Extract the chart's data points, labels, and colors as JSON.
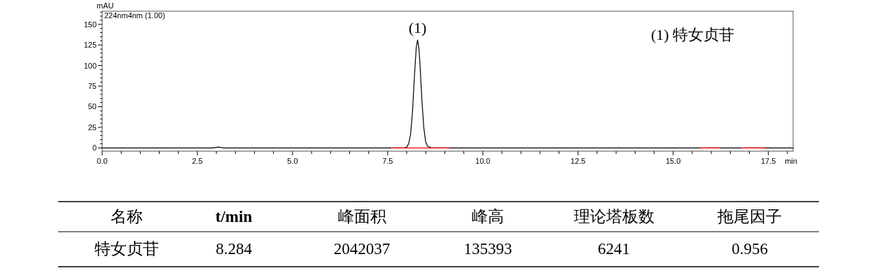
{
  "chart_data": {
    "type": "line",
    "xlabel": "min",
    "ylabel": "mAU",
    "xlim": [
      0,
      18.15
    ],
    "ylim": [
      -4,
      166
    ],
    "xticks": [
      {
        "value": 0,
        "label": "0.0"
      },
      {
        "value": 0.5,
        "label": null
      },
      {
        "value": 1,
        "label": null
      },
      {
        "value": 1.5,
        "label": null
      },
      {
        "value": 2,
        "label": null
      },
      {
        "value": 2.5,
        "label": "2.5"
      },
      {
        "value": 3,
        "label": null
      },
      {
        "value": 3.5,
        "label": null
      },
      {
        "value": 4,
        "label": null
      },
      {
        "value": 4.5,
        "label": null
      },
      {
        "value": 5,
        "label": "5.0"
      },
      {
        "value": 5.5,
        "label": null
      },
      {
        "value": 6,
        "label": null
      },
      {
        "value": 6.5,
        "label": null
      },
      {
        "value": 7,
        "label": null
      },
      {
        "value": 7.5,
        "label": "7.5"
      },
      {
        "value": 8,
        "label": null
      },
      {
        "value": 8.5,
        "label": null
      },
      {
        "value": 9,
        "label": null
      },
      {
        "value": 9.5,
        "label": null
      },
      {
        "value": 10,
        "label": "10.0"
      },
      {
        "value": 10.5,
        "label": null
      },
      {
        "value": 11,
        "label": null
      },
      {
        "value": 11.5,
        "label": null
      },
      {
        "value": 12,
        "label": null
      },
      {
        "value": 12.5,
        "label": "12.5"
      },
      {
        "value": 13,
        "label": null
      },
      {
        "value": 13.5,
        "label": null
      },
      {
        "value": 14,
        "label": null
      },
      {
        "value": 14.5,
        "label": null
      },
      {
        "value": 15,
        "label": "15.0"
      },
      {
        "value": 15.5,
        "label": null
      },
      {
        "value": 16,
        "label": null
      },
      {
        "value": 16.5,
        "label": null
      },
      {
        "value": 17,
        "label": null
      },
      {
        "value": 17.5,
        "label": "17.5"
      },
      {
        "value": 18,
        "label": null
      }
    ],
    "yticks": [
      0,
      {
        "value": 5,
        "label": null
      },
      {
        "value": 10,
        "label": null
      },
      {
        "value": 15,
        "label": null
      },
      {
        "value": 20,
        "label": null
      },
      25,
      {
        "value": 30,
        "label": null
      },
      {
        "value": 35,
        "label": null
      },
      {
        "value": 40,
        "label": null
      },
      {
        "value": 45,
        "label": null
      },
      50,
      {
        "value": 55,
        "label": null
      },
      {
        "value": 60,
        "label": null
      },
      {
        "value": 65,
        "label": null
      },
      {
        "value": 70,
        "label": null
      },
      75,
      {
        "value": 80,
        "label": null
      },
      {
        "value": 85,
        "label": null
      },
      {
        "value": 90,
        "label": null
      },
      {
        "value": 95,
        "label": null
      },
      100,
      {
        "value": 105,
        "label": null
      },
      {
        "value": 110,
        "label": null
      },
      {
        "value": 115,
        "label": null
      },
      {
        "value": 120,
        "label": null
      },
      125,
      {
        "value": 130,
        "label": null
      },
      {
        "value": 135,
        "label": null
      },
      {
        "value": 140,
        "label": null
      },
      {
        "value": 145,
        "label": null
      },
      150,
      {
        "value": 155,
        "label": null
      },
      {
        "value": 160,
        "label": null
      },
      {
        "value": 165,
        "label": null
      }
    ],
    "series": [
      {
        "color": "#000000",
        "x": [
          0,
          2.9,
          3.05,
          3.2,
          7.95,
          8.0,
          8.05,
          8.1,
          8.15,
          8.2,
          8.25,
          8.284,
          8.32,
          8.35,
          8.4,
          8.45,
          8.5,
          8.55,
          8.65,
          18.15
        ],
        "values": [
          0,
          0,
          1,
          0,
          0,
          1,
          5,
          16,
          43,
          85,
          122,
          131,
          121,
          100,
          57,
          24,
          7,
          2,
          0,
          0
        ]
      },
      {
        "color": "#ff0000",
        "x": [
          7.6,
          9.1
        ],
        "values": [
          0,
          0
        ]
      },
      {
        "color": "#ff0000",
        "x": [
          15.7,
          16.2
        ],
        "values": [
          0,
          0
        ]
      },
      {
        "color": "#ff0000",
        "x": [
          16.8,
          17.4
        ],
        "values": [
          0,
          0
        ]
      }
    ],
    "annotations": [
      "224nm4nm (1.00)",
      {
        "text": "(1)",
        "x": 8.284,
        "y": 131
      },
      "(1)  特女贞苷",
      "名称",
      "**t/min**",
      "峰面积",
      "峰高",
      "理论塔板数",
      "拖尾因子",
      "特女贞苷",
      "8.284",
      "2042037",
      "135393",
      "6241",
      "0.956"
    ]
  }
}
